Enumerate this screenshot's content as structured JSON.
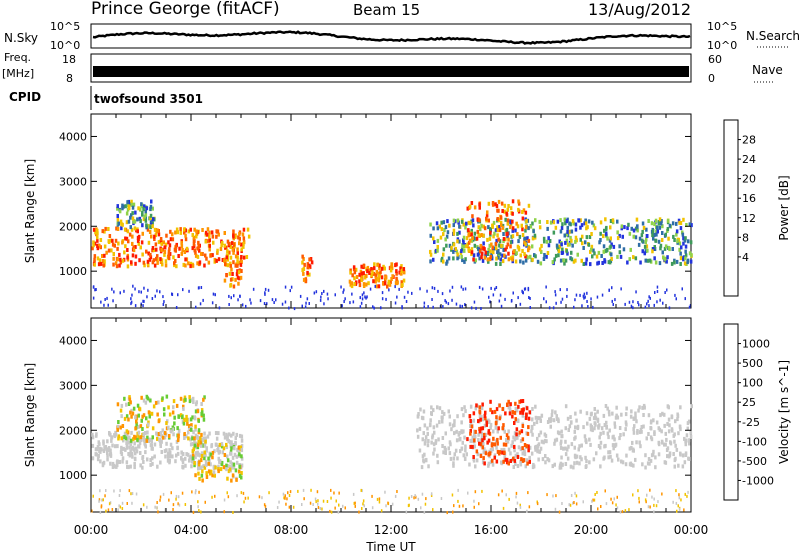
{
  "header": {
    "title": "Prince George (fitACF)",
    "beam": "Beam 15",
    "date": "13/Aug/2012"
  },
  "strips": {
    "nsky_label": "N.Sky",
    "nsky_ticks": [
      "10^5",
      "10^0"
    ],
    "nsearch_label": "N.Search",
    "nsearch_ticks": [
      "10^5",
      "10^0"
    ],
    "freq_label": "Freq.",
    "freq_unit": "[MHz]",
    "freq_ticks": [
      "18",
      "8"
    ],
    "nave_label": "Nave",
    "nave_ticks": [
      "60",
      "0"
    ],
    "cpid_label": "CPID",
    "cpid_value": "twofsound 3501"
  },
  "chart_data": [
    {
      "type": "heatmap",
      "name": "power-panel",
      "ylabel": "Slant Range [km]",
      "yticks": [
        "4000",
        "3000",
        "2000",
        "1000"
      ],
      "ylim": [
        180,
        4500
      ],
      "xlabel": "Time UT",
      "xlim": [
        0,
        24
      ],
      "xtick_labels": [
        "00:00",
        "04:00",
        "08:00",
        "12:00",
        "16:00",
        "20:00",
        "00:00"
      ],
      "colorbar": {
        "label": "Power [dB]",
        "ticks": [
          "28",
          "24",
          "20",
          "16",
          "12",
          "8",
          "4"
        ],
        "colors": [
          "#ff1a00",
          "#ff5a00",
          "#ff9400",
          "#f2c300",
          "#8fd24a",
          "#3e9a5a",
          "#2e6da6",
          "#2233dd",
          "#1010ff"
        ]
      },
      "bands": [
        {
          "t0": 0.0,
          "t1": 6.3,
          "r0": 1150,
          "r1": 2000,
          "level": "high"
        },
        {
          "t0": 1.0,
          "t1": 2.5,
          "r0": 2000,
          "r1": 2600,
          "level": "medium"
        },
        {
          "t0": 5.3,
          "t1": 6.0,
          "r0": 700,
          "r1": 1700,
          "level": "high"
        },
        {
          "t0": 8.4,
          "t1": 8.8,
          "r0": 800,
          "r1": 1400,
          "level": "high"
        },
        {
          "t0": 10.3,
          "t1": 12.5,
          "r0": 700,
          "r1": 1200,
          "level": "high"
        },
        {
          "t0": 13.5,
          "t1": 24.0,
          "r0": 1200,
          "r1": 2200,
          "level": "medium"
        },
        {
          "t0": 15.0,
          "t1": 17.5,
          "r0": 1300,
          "r1": 2600,
          "level": "high"
        }
      ]
    },
    {
      "type": "heatmap",
      "name": "velocity-panel",
      "ylabel": "Slant Range [km]",
      "yticks": [
        "4000",
        "3000",
        "2000",
        "1000"
      ],
      "ylim": [
        180,
        4500
      ],
      "xlabel": "Time UT",
      "xlim": [
        0,
        24
      ],
      "xtick_labels": [
        "00:00",
        "04:00",
        "08:00",
        "12:00",
        "16:00",
        "20:00",
        "00:00"
      ],
      "colorbar": {
        "label": "Velocity [m s^-1]",
        "ticks": [
          "1000",
          "500",
          "100",
          "25",
          "-25",
          "-100",
          "-500",
          "-1000"
        ],
        "colors": [
          "#1b3fd6",
          "#2e7dba",
          "#3e9a5a",
          "#66cc33",
          "#c8c8c8",
          "#f2c300",
          "#ff9400",
          "#ff5a00",
          "#ff1a00"
        ]
      },
      "bands": [
        {
          "t0": 0.0,
          "t1": 6.0,
          "r0": 1200,
          "r1": 2000,
          "level": "ground"
        },
        {
          "t0": 1.0,
          "t1": 4.5,
          "r0": 1800,
          "r1": 2800,
          "level": "negative"
        },
        {
          "t0": 4.0,
          "t1": 6.0,
          "r0": 900,
          "r1": 1800,
          "level": "negative"
        },
        {
          "t0": 13.0,
          "t1": 24.0,
          "r0": 1200,
          "r1": 2600,
          "level": "ground"
        },
        {
          "t0": 15.0,
          "t1": 17.5,
          "r0": 1300,
          "r1": 2700,
          "level": "strong-negative"
        }
      ]
    }
  ]
}
